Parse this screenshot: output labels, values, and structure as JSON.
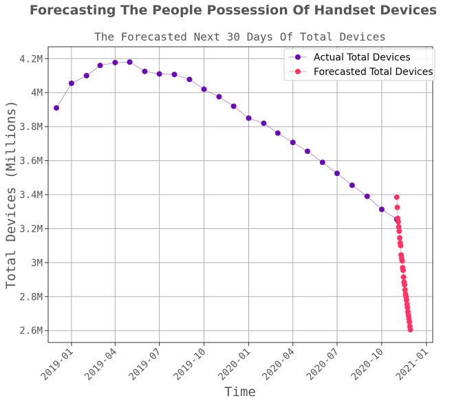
{
  "chart_data": {
    "type": "line",
    "suptitle": "Forecasting The People Possession Of Handset Devices",
    "title": "The Forecasted Next 30 Days Of Total Devices",
    "xlabel": "Time",
    "ylabel": "Total Devices (Millions)",
    "ylim": [
      2.53,
      4.27
    ],
    "xlim": [
      "2018-11-14",
      "2021-01-14"
    ],
    "grid": true,
    "legend_position": "top-right",
    "yticks": [
      {
        "value": 2.6,
        "label": "2.6M"
      },
      {
        "value": 2.8,
        "label": "2.8M"
      },
      {
        "value": 3.0,
        "label": "3M"
      },
      {
        "value": 3.2,
        "label": "3.2M"
      },
      {
        "value": 3.4,
        "label": "3.4M"
      },
      {
        "value": 3.6,
        "label": "3.6M"
      },
      {
        "value": 3.8,
        "label": "3.8M"
      },
      {
        "value": 4.0,
        "label": "4M"
      },
      {
        "value": 4.2,
        "label": "4.2M"
      }
    ],
    "xticks": [
      {
        "value": "2019-01-01",
        "label": "2019-01"
      },
      {
        "value": "2019-04-01",
        "label": "2019-04"
      },
      {
        "value": "2019-07-01",
        "label": "2019-07"
      },
      {
        "value": "2019-10-01",
        "label": "2019-10"
      },
      {
        "value": "2020-01-01",
        "label": "2020-01"
      },
      {
        "value": "2020-04-01",
        "label": "2020-04"
      },
      {
        "value": "2020-07-01",
        "label": "2020-07"
      },
      {
        "value": "2020-10-01",
        "label": "2020-10"
      },
      {
        "value": "2021-01-01",
        "label": "2021-01"
      }
    ],
    "series": [
      {
        "name": "Actual Total Devices",
        "color": "#6a0dad",
        "points": [
          {
            "x": "2018-12-01",
            "y": 3.91
          },
          {
            "x": "2019-01-01",
            "y": 4.055
          },
          {
            "x": "2019-02-01",
            "y": 4.1
          },
          {
            "x": "2019-03-01",
            "y": 4.16
          },
          {
            "x": "2019-04-01",
            "y": 4.177
          },
          {
            "x": "2019-05-01",
            "y": 4.18
          },
          {
            "x": "2019-06-01",
            "y": 4.125
          },
          {
            "x": "2019-07-01",
            "y": 4.11
          },
          {
            "x": "2019-08-01",
            "y": 4.107
          },
          {
            "x": "2019-09-01",
            "y": 4.078
          },
          {
            "x": "2019-10-01",
            "y": 4.02
          },
          {
            "x": "2019-11-01",
            "y": 3.976
          },
          {
            "x": "2019-12-01",
            "y": 3.92
          },
          {
            "x": "2020-01-01",
            "y": 3.85
          },
          {
            "x": "2020-02-01",
            "y": 3.82
          },
          {
            "x": "2020-03-01",
            "y": 3.762
          },
          {
            "x": "2020-04-01",
            "y": 3.707
          },
          {
            "x": "2020-05-01",
            "y": 3.655
          },
          {
            "x": "2020-06-01",
            "y": 3.59
          },
          {
            "x": "2020-07-01",
            "y": 3.525
          },
          {
            "x": "2020-08-01",
            "y": 3.455
          },
          {
            "x": "2020-09-01",
            "y": 3.39
          },
          {
            "x": "2020-10-01",
            "y": 3.313
          },
          {
            "x": "2020-11-01",
            "y": 3.255
          }
        ]
      },
      {
        "name": "Forecasted Total Devices",
        "color": "#ff3366",
        "points": [
          {
            "x": "2020-11-01",
            "y": 3.385
          },
          {
            "x": "2020-11-02",
            "y": 3.325
          },
          {
            "x": "2020-11-03",
            "y": 3.26
          },
          {
            "x": "2020-11-04",
            "y": 3.24
          },
          {
            "x": "2020-11-05",
            "y": 3.21
          },
          {
            "x": "2020-11-06",
            "y": 3.185
          },
          {
            "x": "2020-11-07",
            "y": 3.145
          },
          {
            "x": "2020-11-08",
            "y": 3.115
          },
          {
            "x": "2020-11-09",
            "y": 3.1
          },
          {
            "x": "2020-11-10",
            "y": 3.045
          },
          {
            "x": "2020-11-11",
            "y": 3.025
          },
          {
            "x": "2020-11-12",
            "y": 3.01
          },
          {
            "x": "2020-11-13",
            "y": 2.97
          },
          {
            "x": "2020-11-14",
            "y": 2.955
          },
          {
            "x": "2020-11-15",
            "y": 2.915
          },
          {
            "x": "2020-11-16",
            "y": 2.885
          },
          {
            "x": "2020-11-17",
            "y": 2.87
          },
          {
            "x": "2020-11-18",
            "y": 2.84
          },
          {
            "x": "2020-11-19",
            "y": 2.815
          },
          {
            "x": "2020-11-20",
            "y": 2.8
          },
          {
            "x": "2020-11-21",
            "y": 2.78
          },
          {
            "x": "2020-11-22",
            "y": 2.755
          },
          {
            "x": "2020-11-23",
            "y": 2.735
          },
          {
            "x": "2020-11-24",
            "y": 2.71
          },
          {
            "x": "2020-11-25",
            "y": 2.69
          },
          {
            "x": "2020-11-26",
            "y": 2.67
          },
          {
            "x": "2020-11-27",
            "y": 2.65
          },
          {
            "x": "2020-11-28",
            "y": 2.625
          },
          {
            "x": "2020-11-29",
            "y": 2.605
          }
        ]
      }
    ]
  }
}
